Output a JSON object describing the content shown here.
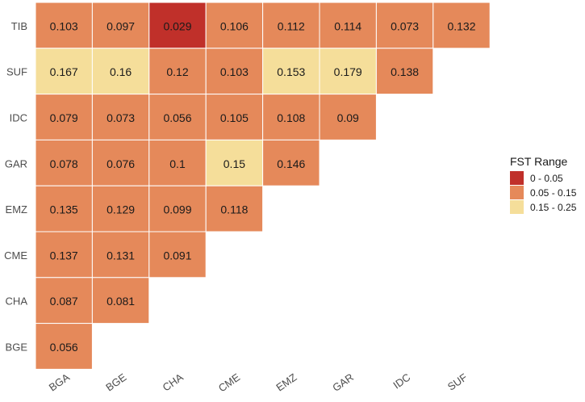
{
  "chart_data": {
    "type": "heatmap",
    "title": "",
    "xlabel": "",
    "ylabel": "",
    "x_categories": [
      "BGA",
      "BGE",
      "CHA",
      "CME",
      "EMZ",
      "GAR",
      "IDC",
      "SUF"
    ],
    "y_categories_top_to_bottom": [
      "TIB",
      "SUF",
      "IDC",
      "GAR",
      "EMZ",
      "CME",
      "CHA",
      "BGE"
    ],
    "rows": [
      {
        "y": "TIB",
        "values": [
          0.103,
          0.097,
          0.029,
          0.106,
          0.112,
          0.114,
          0.073,
          0.132
        ]
      },
      {
        "y": "SUF",
        "values": [
          0.167,
          0.16,
          0.12,
          0.103,
          0.153,
          0.179,
          0.138
        ]
      },
      {
        "y": "IDC",
        "values": [
          0.079,
          0.073,
          0.056,
          0.105,
          0.108,
          0.09
        ]
      },
      {
        "y": "GAR",
        "values": [
          0.078,
          0.076,
          0.1,
          0.15,
          0.146
        ]
      },
      {
        "y": "EMZ",
        "values": [
          0.135,
          0.129,
          0.099,
          0.118
        ]
      },
      {
        "y": "CME",
        "values": [
          0.137,
          0.131,
          0.091
        ]
      },
      {
        "y": "CHA",
        "values": [
          0.087,
          0.081
        ]
      },
      {
        "y": "BGE",
        "values": [
          0.056
        ]
      }
    ],
    "cell_text": {
      "TIB": [
        "0.103",
        "0.097",
        "0.029",
        "0.106",
        "0.112",
        "0.114",
        "0.073",
        "0.132"
      ],
      "SUF": [
        "0.167",
        "0.16",
        "0.12",
        "0.103",
        "0.153",
        "0.179",
        "0.138"
      ],
      "IDC": [
        "0.079",
        "0.073",
        "0.056",
        "0.105",
        "0.108",
        "0.09"
      ],
      "GAR": [
        "0.078",
        "0.076",
        "0.1",
        "0.15",
        "0.146"
      ],
      "EMZ": [
        "0.135",
        "0.129",
        "0.099",
        "0.118"
      ],
      "CME": [
        "0.137",
        "0.131",
        "0.091"
      ],
      "CHA": [
        "0.087",
        "0.081"
      ],
      "BGE": [
        "0.056"
      ]
    },
    "legend": {
      "title": "FST Range",
      "position": "right",
      "entries": [
        {
          "label": "0 - 0.05",
          "min": 0,
          "max": 0.05,
          "color": "#C0302A"
        },
        {
          "label": "0.05 - 0.15",
          "min": 0.05,
          "max": 0.15,
          "color": "#E5895A"
        },
        {
          "label": "0.15 - 0.25",
          "min": 0.15,
          "max": 0.25,
          "color": "#F5DE9A"
        }
      ]
    }
  }
}
